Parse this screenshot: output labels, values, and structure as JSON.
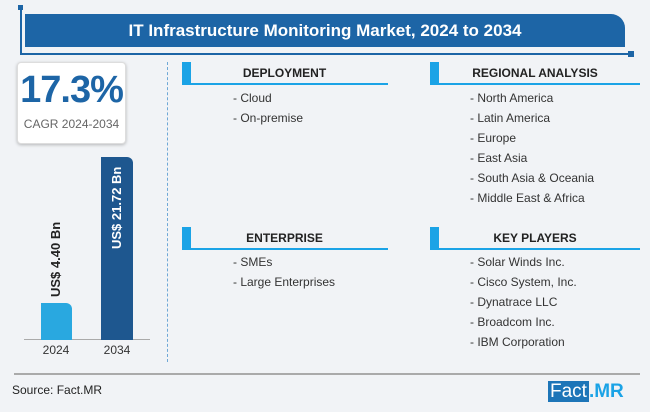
{
  "title": "IT Infrastructure Monitoring Market, 2024 to 2034",
  "cagr": {
    "value": "17.3%",
    "label": "CAGR 2024-2034"
  },
  "chart_data": {
    "type": "bar",
    "categories": [
      "2024",
      "2034"
    ],
    "values": [
      4.4,
      21.72
    ],
    "data_labels": [
      "US$ 4.40 Bn",
      "US$ 21.72 Bn"
    ],
    "colors": [
      "#29a8e0",
      "#1e578f"
    ]
  },
  "sections": [
    {
      "title": "DEPLOYMENT",
      "items": [
        "- Cloud",
        "- On-premise"
      ]
    },
    {
      "title": "REGIONAL ANALYSIS",
      "items": [
        "- North America",
        "- Latin America",
        "- Europe",
        "- East Asia",
        "- South Asia & Oceania",
        "- Middle East & Africa"
      ]
    },
    {
      "title": "ENTERPRISE",
      "items": [
        "- SMEs",
        "- Large Enterprises"
      ]
    },
    {
      "title": "KEY PLAYERS",
      "items": [
        "- Solar Winds Inc.",
        "- Cisco System, Inc.",
        "- Dynatrace LLC",
        "- Broadcom Inc.",
        "- IBM Corporation"
      ]
    }
  ],
  "source": "Source: Fact.MR",
  "logo": {
    "part1": "Fact",
    "part2": ".MR"
  }
}
